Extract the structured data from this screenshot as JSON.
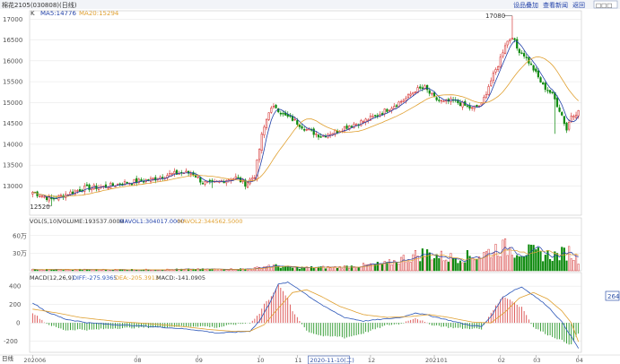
{
  "header": {
    "title": "棉花2105(030808)(日线)",
    "links": [
      "设品叠加",
      "查看新闻",
      "返回"
    ]
  },
  "colors": {
    "up": "#d63a3a",
    "down": "#0e8a0e",
    "ma5": "#1f3fa8",
    "ma20": "#e0a030",
    "grid": "#e3e3e3",
    "axis": "#555555",
    "dif": "#2b56b8",
    "dea": "#e0a030"
  },
  "price_panel": {
    "label_k": "K",
    "legend": [
      {
        "text": "MA5:14776",
        "color": "#1f3fa8"
      },
      {
        "text": "MA20:15294",
        "color": "#e0a030"
      }
    ],
    "yticks": [
      17000,
      16500,
      16000,
      15500,
      15000,
      14500,
      14000,
      13500,
      13000
    ],
    "high_label": "17080",
    "low_label": "12520"
  },
  "volume_panel": {
    "legend": [
      {
        "text": "VOL(5,10)",
        "color": "#333333"
      },
      {
        "text": "VOLUME:193537.0000",
        "color": "#333333"
      },
      {
        "text": "MAVOL1:304017.0000",
        "color": "#1f3fa8"
      },
      {
        "text": "MAVOL2:344562.5000",
        "color": "#e0a030"
      }
    ],
    "yticks": [
      "60万",
      "30万"
    ]
  },
  "macd_panel": {
    "legend": [
      {
        "text": "MACD(12,26,9)",
        "color": "#333333"
      },
      {
        "text": "DIFF:-275.9365",
        "color": "#2b56b8"
      },
      {
        "text": "DEA:-205.3913",
        "color": "#e0a030"
      },
      {
        "text": "MACD:-141.0905",
        "color": "#333333"
      }
    ],
    "yticks": [
      "400",
      "200",
      "0",
      "-200"
    ],
    "right_badge": "264"
  },
  "x_axis": {
    "left_label": "日线",
    "ticks": [
      "202006",
      "08",
      "09",
      "10",
      "11",
      "2020-11-10(二)",
      "12",
      "202101",
      "02",
      "03",
      "04"
    ],
    "cursor_label": "2020-11-10(二)"
  },
  "chart_data": {
    "type": "candlestick",
    "title": "棉花2105(030808)(日线)",
    "price_axis": {
      "min": 12300,
      "max": 17200
    },
    "volume_axis_unit": "万",
    "macd_axis": {
      "min": -320,
      "max": 450
    },
    "anchors": {
      "close": [
        [
          0,
          12850
        ],
        [
          8,
          12680
        ],
        [
          14,
          12800
        ],
        [
          22,
          12950
        ],
        [
          30,
          12980
        ],
        [
          40,
          13080
        ],
        [
          50,
          13150
        ],
        [
          58,
          13280
        ],
        [
          64,
          13320
        ],
        [
          68,
          13300
        ],
        [
          72,
          13080
        ],
        [
          76,
          13050
        ],
        [
          82,
          13150
        ],
        [
          86,
          13200
        ],
        [
          90,
          13050
        ],
        [
          94,
          13250
        ],
        [
          97,
          14200
        ],
        [
          100,
          14800
        ],
        [
          103,
          14900
        ],
        [
          106,
          14700
        ],
        [
          110,
          14600
        ],
        [
          116,
          14350
        ],
        [
          122,
          14200
        ],
        [
          128,
          14300
        ],
        [
          134,
          14450
        ],
        [
          140,
          14550
        ],
        [
          146,
          14700
        ],
        [
          152,
          14900
        ],
        [
          158,
          15100
        ],
        [
          162,
          15300
        ],
        [
          166,
          15350
        ],
        [
          170,
          15100
        ],
        [
          174,
          15000
        ],
        [
          178,
          15050
        ],
        [
          182,
          14950
        ],
        [
          186,
          14850
        ],
        [
          190,
          14950
        ],
        [
          193,
          15400
        ],
        [
          197,
          15900
        ],
        [
          200,
          16400
        ],
        [
          203,
          16600
        ],
        [
          205,
          16300
        ],
        [
          208,
          16150
        ],
        [
          212,
          15800
        ],
        [
          216,
          15400
        ],
        [
          220,
          15200
        ],
        [
          224,
          14700
        ],
        [
          226,
          14350
        ],
        [
          228,
          14700
        ],
        [
          231,
          14780
        ]
      ],
      "volume_wan": [
        [
          0,
          2
        ],
        [
          50,
          2
        ],
        [
          90,
          3
        ],
        [
          96,
          5
        ],
        [
          100,
          9
        ],
        [
          110,
          5
        ],
        [
          130,
          6
        ],
        [
          150,
          12
        ],
        [
          158,
          22
        ],
        [
          166,
          30
        ],
        [
          176,
          22
        ],
        [
          190,
          26
        ],
        [
          197,
          40
        ],
        [
          205,
          36
        ],
        [
          215,
          28
        ],
        [
          222,
          26
        ],
        [
          227,
          32
        ],
        [
          231,
          19
        ]
      ],
      "dif": [
        [
          0,
          220
        ],
        [
          6,
          120
        ],
        [
          14,
          40
        ],
        [
          24,
          0
        ],
        [
          36,
          -20
        ],
        [
          50,
          -40
        ],
        [
          62,
          -60
        ],
        [
          70,
          -80
        ],
        [
          78,
          -110
        ],
        [
          86,
          -100
        ],
        [
          92,
          -90
        ],
        [
          96,
          20
        ],
        [
          100,
          200
        ],
        [
          104,
          420
        ],
        [
          108,
          440
        ],
        [
          112,
          380
        ],
        [
          118,
          270
        ],
        [
          124,
          170
        ],
        [
          132,
          60
        ],
        [
          140,
          20
        ],
        [
          148,
          40
        ],
        [
          156,
          60
        ],
        [
          162,
          110
        ],
        [
          168,
          80
        ],
        [
          176,
          30
        ],
        [
          184,
          -20
        ],
        [
          190,
          -40
        ],
        [
          194,
          70
        ],
        [
          199,
          280
        ],
        [
          204,
          360
        ],
        [
          207,
          390
        ],
        [
          212,
          300
        ],
        [
          218,
          180
        ],
        [
          224,
          10
        ],
        [
          228,
          -150
        ],
        [
          231,
          -276
        ]
      ],
      "dea": [
        [
          0,
          150
        ],
        [
          10,
          110
        ],
        [
          20,
          60
        ],
        [
          34,
          20
        ],
        [
          50,
          -10
        ],
        [
          64,
          -40
        ],
        [
          74,
          -70
        ],
        [
          84,
          -90
        ],
        [
          92,
          -90
        ],
        [
          98,
          -20
        ],
        [
          104,
          160
        ],
        [
          110,
          330
        ],
        [
          116,
          360
        ],
        [
          122,
          290
        ],
        [
          130,
          180
        ],
        [
          140,
          90
        ],
        [
          150,
          60
        ],
        [
          160,
          70
        ],
        [
          168,
          90
        ],
        [
          176,
          60
        ],
        [
          186,
          10
        ],
        [
          194,
          0
        ],
        [
          200,
          120
        ],
        [
          206,
          270
        ],
        [
          212,
          330
        ],
        [
          218,
          260
        ],
        [
          224,
          130
        ],
        [
          228,
          0
        ],
        [
          231,
          -205
        ]
      ]
    },
    "annotations": [
      "17080",
      "12520"
    ]
  }
}
